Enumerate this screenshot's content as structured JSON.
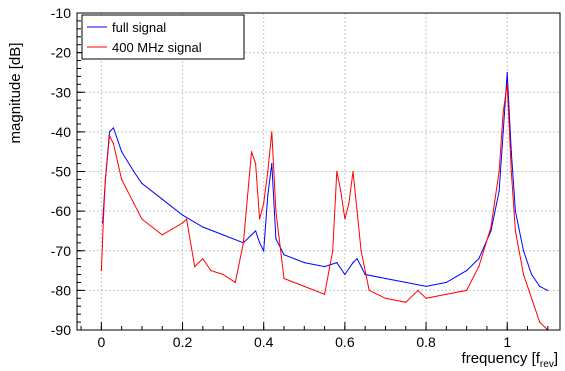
{
  "chart_data": {
    "type": "line",
    "title": "",
    "ylabel": "magnitude [dB]",
    "xlabel_main": "frequency [f",
    "xlabel_sub": "rev",
    "xlabel_close": "]",
    "xlim": [
      -0.06,
      1.13
    ],
    "ylim": [
      -90,
      -10
    ],
    "x_ticks": [
      0,
      0.2,
      0.4,
      0.6,
      0.8,
      1
    ],
    "x_tick_labels": [
      "0",
      "0.2",
      "0.4",
      "0.6",
      "0.8",
      "1"
    ],
    "y_ticks": [
      -90,
      -80,
      -70,
      -60,
      -50,
      -40,
      -30,
      -20,
      -10
    ],
    "y_tick_labels": [
      "-90",
      "-80",
      "-70",
      "-60",
      "-50",
      "-40",
      "-30",
      "-20",
      "-10"
    ],
    "grid": true,
    "legend_position": "top-left",
    "series": [
      {
        "name": "full signal",
        "color": "#0000ff",
        "x": [
          0.003,
          0.01,
          0.02,
          0.03,
          0.05,
          0.08,
          0.1,
          0.15,
          0.2,
          0.25,
          0.3,
          0.35,
          0.37,
          0.38,
          0.39,
          0.4,
          0.41,
          0.42,
          0.43,
          0.45,
          0.5,
          0.55,
          0.58,
          0.6,
          0.62,
          0.63,
          0.65,
          0.7,
          0.75,
          0.8,
          0.85,
          0.9,
          0.93,
          0.96,
          0.98,
          0.99,
          1.0,
          1.01,
          1.02,
          1.04,
          1.06,
          1.08,
          1.1
        ],
        "y": [
          -63,
          -52,
          -40,
          -39,
          -45,
          -50,
          -53,
          -57,
          -61,
          -64,
          -66,
          -68,
          -66,
          -65,
          -68,
          -70,
          -56,
          -48,
          -67,
          -71,
          -73,
          -74,
          -73,
          -76,
          -73,
          -72,
          -76,
          -77,
          -78,
          -79,
          -78,
          -75,
          -72,
          -65,
          -55,
          -40,
          -25,
          -45,
          -60,
          -70,
          -76,
          -79,
          -80
        ]
      },
      {
        "name": "400 MHz signal",
        "color": "#ff0000",
        "x": [
          0.0,
          0.005,
          0.01,
          0.02,
          0.03,
          0.05,
          0.08,
          0.1,
          0.15,
          0.2,
          0.21,
          0.23,
          0.25,
          0.27,
          0.3,
          0.33,
          0.35,
          0.37,
          0.38,
          0.39,
          0.4,
          0.41,
          0.42,
          0.43,
          0.45,
          0.5,
          0.55,
          0.57,
          0.58,
          0.59,
          0.6,
          0.61,
          0.62,
          0.63,
          0.64,
          0.66,
          0.7,
          0.75,
          0.78,
          0.8,
          0.85,
          0.9,
          0.93,
          0.96,
          0.98,
          0.99,
          1.0,
          1.01,
          1.02,
          1.04,
          1.06,
          1.08,
          1.1
        ],
        "y": [
          -75,
          -62,
          -52,
          -41,
          -43,
          -52,
          -58,
          -62,
          -66,
          -63,
          -62,
          -74,
          -72,
          -75,
          -76,
          -78,
          -68,
          -45,
          -48,
          -62,
          -58,
          -50,
          -40,
          -60,
          -77,
          -79,
          -81,
          -70,
          -50,
          -55,
          -62,
          -58,
          -50,
          -60,
          -70,
          -80,
          -82,
          -83,
          -80,
          -82,
          -81,
          -80,
          -74,
          -64,
          -50,
          -35,
          -28,
          -50,
          -65,
          -76,
          -82,
          -88,
          -90
        ]
      }
    ]
  }
}
